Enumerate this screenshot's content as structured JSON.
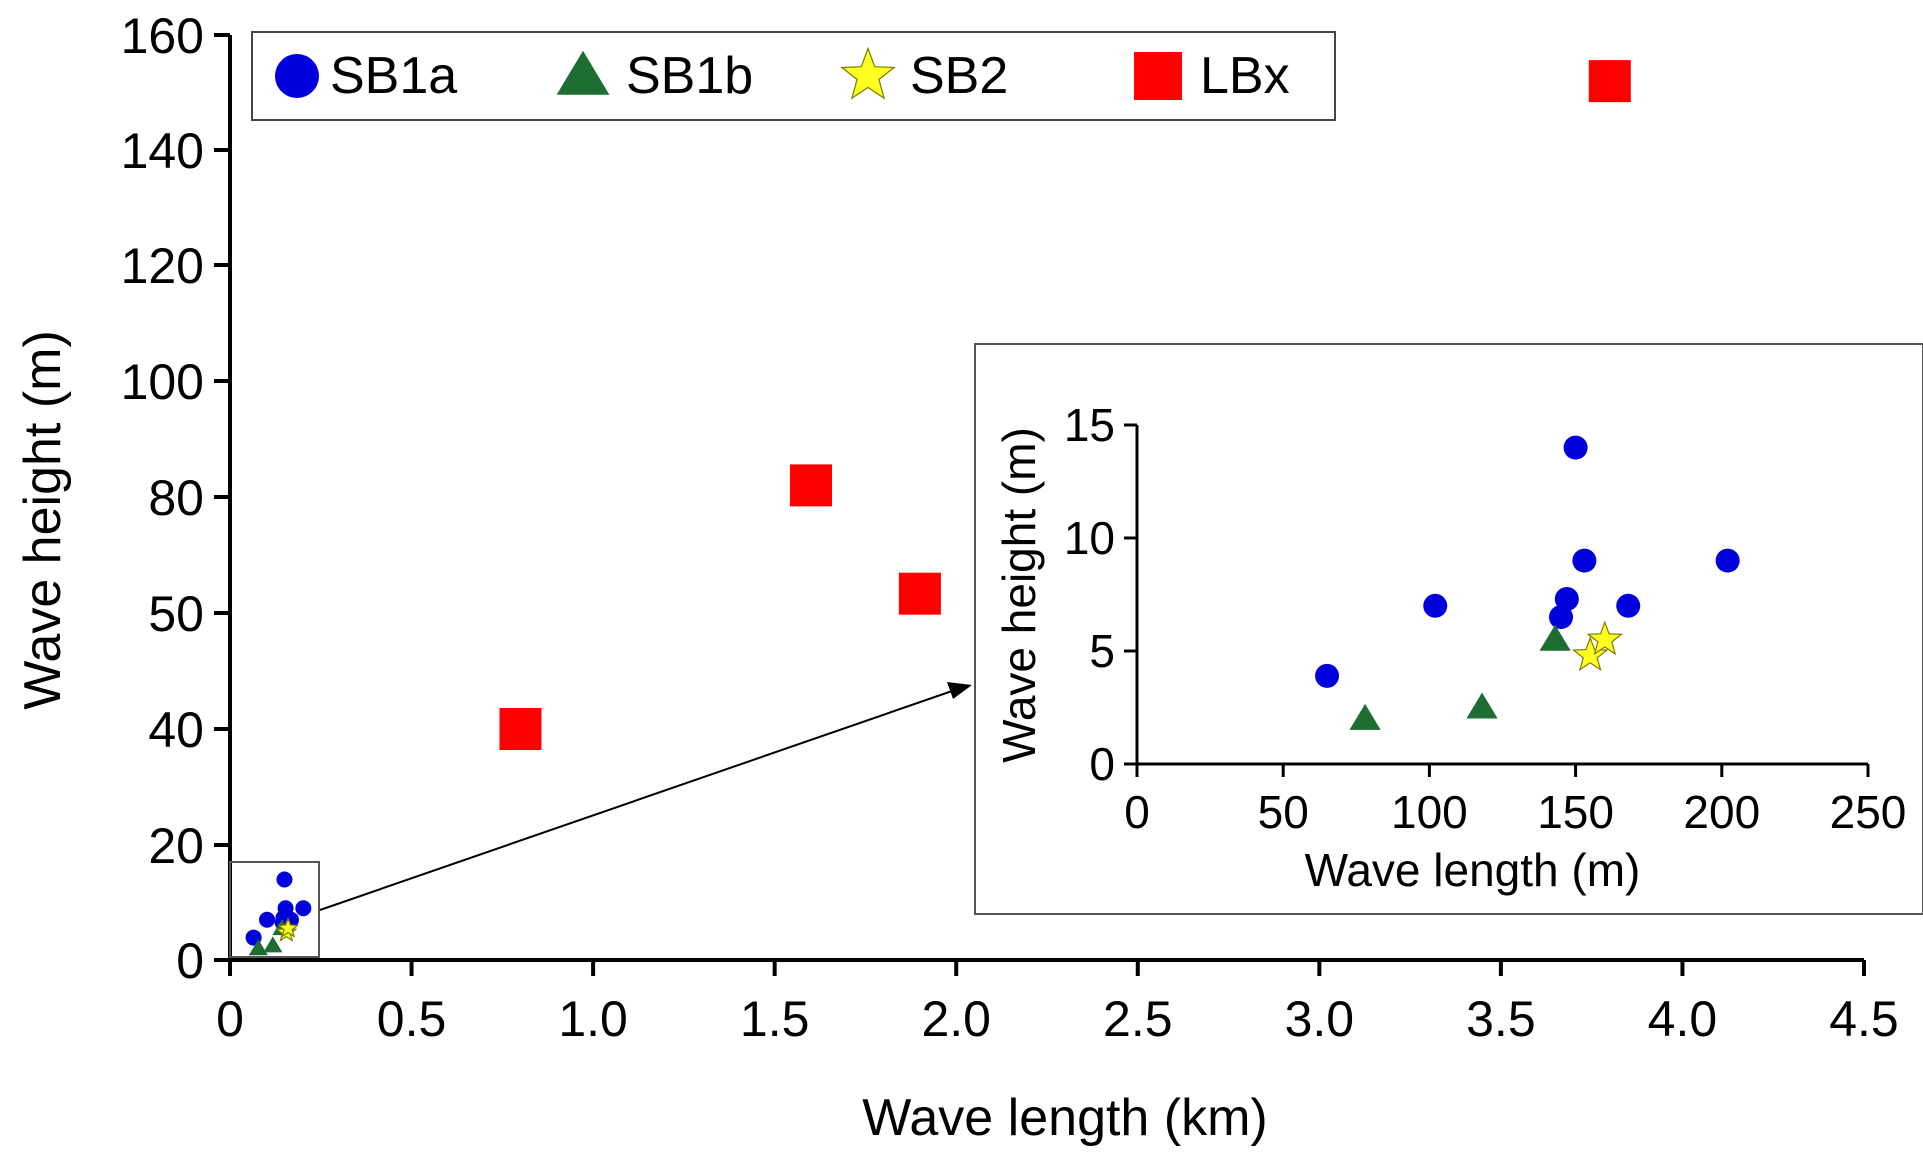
{
  "chart_data": [
    {
      "type": "scatter",
      "title": "",
      "xlabel": "Wave length (km)",
      "ylabel": "Wave height (m)",
      "xlim": [
        0,
        4.5
      ],
      "ylim": [
        0,
        160
      ],
      "y_axis_note": "axis break: tick labels jump from 40 to 50 and 80 to 100",
      "xticks": [
        "0",
        "0.5",
        "1.0",
        "1.5",
        "2.0",
        "2.5",
        "3.0",
        "3.5",
        "4.0",
        "4.5"
      ],
      "yticks": [
        "0",
        "20",
        "40",
        "50",
        "80",
        "100",
        "120",
        "140",
        "160"
      ],
      "legend_position": "top-left",
      "series": [
        {
          "name": "SB1a",
          "marker": "circle",
          "color": "#0000dd",
          "points": [
            [
              0.065,
              3.9
            ],
            [
              0.102,
              7.0
            ],
            [
              0.145,
              6.5
            ],
            [
              0.147,
              7.3
            ],
            [
              0.15,
              14.0
            ],
            [
              0.153,
              9.0
            ],
            [
              0.168,
              7.0
            ],
            [
              0.202,
              9.0
            ]
          ]
        },
        {
          "name": "SB1b",
          "marker": "triangle",
          "color": "#1e6e34",
          "points": [
            [
              0.078,
              2.0
            ],
            [
              0.118,
              2.5
            ],
            [
              0.143,
              5.5
            ]
          ]
        },
        {
          "name": "SB2",
          "marker": "star",
          "color": "#ffff22",
          "points": [
            [
              0.155,
              4.8
            ],
            [
              0.16,
              5.5
            ]
          ]
        },
        {
          "name": "LBx",
          "marker": "square",
          "color": "#ff0000",
          "points": [
            [
              0.8,
              40
            ],
            [
              1.6,
              82
            ],
            [
              1.9,
              55
            ],
            [
              3.8,
              152
            ]
          ]
        }
      ]
    },
    {
      "type": "scatter",
      "title": "",
      "xlabel": "Wave length (m)",
      "ylabel": "Wave height (m)",
      "xlim": [
        0,
        250
      ],
      "ylim": [
        0,
        15
      ],
      "xticks": [
        "0",
        "50",
        "100",
        "150",
        "200",
        "250"
      ],
      "yticks": [
        "0",
        "5",
        "10",
        "15"
      ],
      "series": [
        {
          "name": "SB1a",
          "marker": "circle",
          "color": "#0000dd",
          "points": [
            [
              65,
              3.9
            ],
            [
              102,
              7.0
            ],
            [
              145,
              6.5
            ],
            [
              147,
              7.3
            ],
            [
              150,
              14.0
            ],
            [
              153,
              9.0
            ],
            [
              168,
              7.0
            ],
            [
              202,
              9.0
            ]
          ]
        },
        {
          "name": "SB1b",
          "marker": "triangle",
          "color": "#1e6e34",
          "points": [
            [
              78,
              2.0
            ],
            [
              118,
              2.5
            ],
            [
              143,
              5.5
            ]
          ]
        },
        {
          "name": "SB2",
          "marker": "star",
          "color": "#ffff22",
          "points": [
            [
              155,
              4.8
            ],
            [
              160,
              5.5
            ]
          ]
        }
      ]
    }
  ]
}
